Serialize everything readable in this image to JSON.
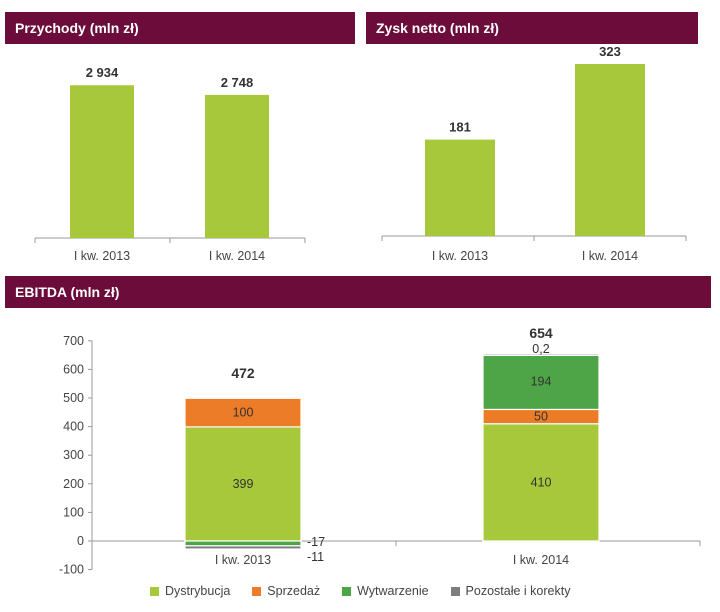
{
  "colors": {
    "header": "#6b0c3a",
    "dystrybucja": "#a8c83c",
    "sprzedaz": "#ec7c27",
    "wytwarzenie": "#4ea547",
    "pozostale": "#7d7d7d"
  },
  "chart_data": [
    {
      "type": "bar",
      "title": "Przychody (mln zł)",
      "categories": [
        "I kw. 2013",
        "I kw. 2014"
      ],
      "values": [
        2934,
        2748
      ],
      "value_labels": [
        "2 934",
        "2 748"
      ]
    },
    {
      "type": "bar",
      "title": "Zysk netto (mln zł)",
      "categories": [
        "I kw. 2013",
        "I kw. 2014"
      ],
      "values": [
        181,
        323
      ],
      "value_labels": [
        "181",
        "323"
      ]
    },
    {
      "type": "stacked-bar",
      "title": "EBITDA (mln zł)",
      "categories": [
        "I kw. 2013",
        "I kw. 2014"
      ],
      "ylim": [
        -100,
        700
      ],
      "yticks": [
        -100,
        0,
        100,
        200,
        300,
        400,
        500,
        600,
        700
      ],
      "totals": [
        472,
        654
      ],
      "total_labels": [
        "472",
        "654"
      ],
      "series": [
        {
          "name": "Dystrybucja",
          "values": [
            399,
            410
          ],
          "labels": [
            "399",
            "410"
          ]
        },
        {
          "name": "Sprzedaż",
          "values": [
            100,
            50
          ],
          "labels": [
            "100",
            "50"
          ]
        },
        {
          "name": "Wytwarzenie",
          "values": [
            -17,
            194
          ],
          "labels": [
            "-17",
            "194"
          ]
        },
        {
          "name": "Pozostałe i korekty",
          "values": [
            -11,
            0.2
          ],
          "labels": [
            "-11",
            "0,2"
          ]
        }
      ],
      "legend_position": "bottom"
    }
  ]
}
